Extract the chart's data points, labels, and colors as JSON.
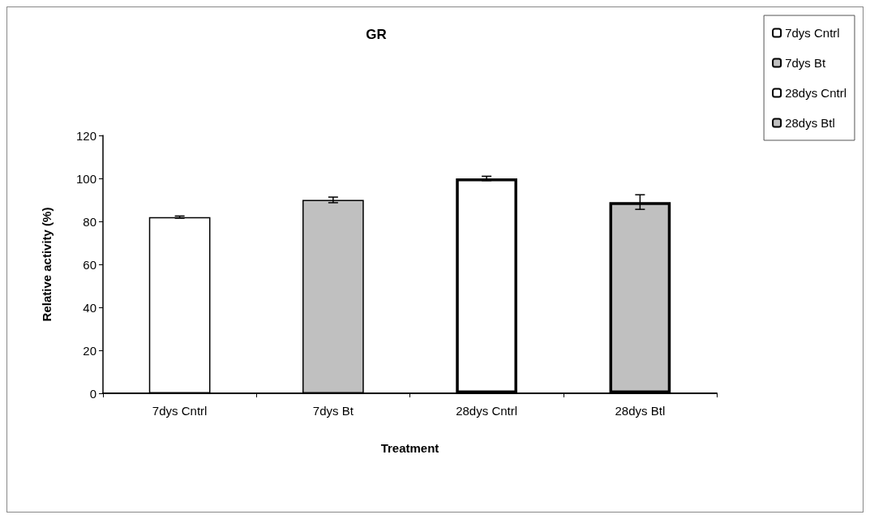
{
  "chart_data": {
    "type": "bar",
    "title": "GR",
    "xlabel": "Treatment",
    "ylabel": "Relative activity (%)",
    "categories": [
      "7dys Cntrl",
      "7dys Bt",
      "28dys Cntrl",
      "28dys Btl"
    ],
    "series": [
      {
        "name": "7dys Cntrl",
        "color": "#ffffff",
        "values": [
          82,
          null,
          null,
          null
        ],
        "errors": [
          0.5,
          null,
          null,
          null
        ]
      },
      {
        "name": "7dys Bt",
        "color": "#c0c0c0",
        "values": [
          null,
          90,
          null,
          null
        ],
        "errors": [
          null,
          1.3,
          null,
          null
        ]
      },
      {
        "name": "28dys Cntrl",
        "color": "#ffffff",
        "values": [
          null,
          null,
          100,
          null
        ],
        "errors": [
          null,
          null,
          1,
          null
        ]
      },
      {
        "name": "28dys Btl",
        "color": "#c0c0c0",
        "values": [
          null,
          null,
          null,
          89
        ],
        "errors": [
          null,
          null,
          null,
          3.4
        ]
      }
    ],
    "stacked": true,
    "ylim": [
      0,
      120
    ],
    "yticks": [
      0,
      20,
      40,
      60,
      80,
      100,
      120
    ],
    "grid": false,
    "legend": "top right"
  }
}
